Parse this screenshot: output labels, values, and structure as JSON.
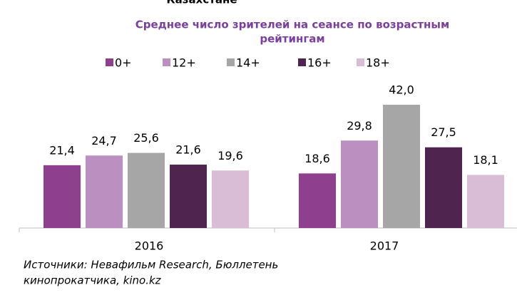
{
  "chart_data": {
    "type": "bar",
    "heading": "Казахстане",
    "title": [
      "Среднее число зрителей на сеансе по возрастным",
      "рейтингам"
    ],
    "categories": [
      "2016",
      "2017"
    ],
    "series": [
      {
        "name": "0+",
        "color": "#8e3f8e",
        "values": [
          21.4,
          18.6
        ],
        "value_labels": [
          "21,4",
          "18,6"
        ]
      },
      {
        "name": "12+",
        "color": "#bb8fc0",
        "values": [
          24.7,
          29.8
        ],
        "value_labels": [
          "24,7",
          "29,8"
        ]
      },
      {
        "name": "14+",
        "color": "#a6a6a6",
        "values": [
          25.6,
          42.0
        ],
        "value_labels": [
          "25,6",
          "42,0"
        ]
      },
      {
        "name": "16+",
        "color": "#4f2550",
        "values": [
          21.6,
          27.5
        ],
        "value_labels": [
          "21,6",
          "27,5"
        ]
      },
      {
        "name": "18+",
        "color": "#d9bcd6",
        "values": [
          19.6,
          18.1
        ],
        "value_labels": [
          "19,6",
          "18,1"
        ]
      }
    ],
    "legend": "top",
    "source": [
      "Источники: Невафильм Research, Бюллетень",
      "кинопрокатчика, kino.kz"
    ]
  }
}
